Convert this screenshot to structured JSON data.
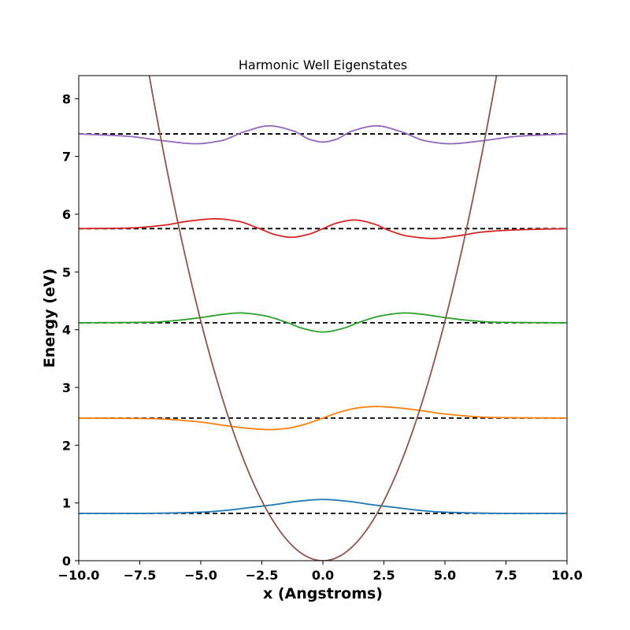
{
  "chart_data": {
    "type": "line",
    "title": "Harmonic Well Eigenstates",
    "xlabel": "x (Angstroms)",
    "ylabel": "Energy (eV)",
    "xlim": [
      -10,
      10
    ],
    "ylim": [
      0,
      8.4
    ],
    "xticks": [
      -10,
      -7.5,
      -5,
      -2.5,
      0,
      2.5,
      5,
      7.5,
      10
    ],
    "xtick_labels": [
      "−10.0",
      "−7.5",
      "−5.0",
      "−2.5",
      "0.0",
      "2.5",
      "5.0",
      "7.5",
      "10.0"
    ],
    "yticks": [
      0,
      1,
      2,
      3,
      4,
      5,
      6,
      7,
      8
    ],
    "ytick_labels": [
      "0",
      "1",
      "2",
      "3",
      "4",
      "5",
      "6",
      "7",
      "8"
    ],
    "grid": false,
    "legend": "none",
    "potential": {
      "type": "parabola",
      "y_at_x_-5": 4.15,
      "color": "#8c564b"
    },
    "energy_levels": [
      0.82,
      2.47,
      4.12,
      5.75,
      7.39
    ],
    "energy_line_style": "dashed",
    "energy_line_color": "#000000",
    "series": [
      {
        "color": "#1f77b4",
        "x": [
          -10,
          -7.5,
          -5,
          -4,
          -3,
          -2,
          -1,
          0,
          1,
          2,
          3,
          4,
          5,
          7.5,
          10
        ],
        "y": [
          0.82,
          0.82,
          0.84,
          0.87,
          0.92,
          0.97,
          1.03,
          1.06,
          1.03,
          0.97,
          0.92,
          0.87,
          0.84,
          0.82,
          0.82
        ]
      },
      {
        "color": "#ff7f0e",
        "x": [
          -10,
          -7,
          -5,
          -4,
          -3,
          -2.2,
          -1.5,
          -0.75,
          0,
          0.75,
          1.5,
          2.2,
          3,
          4,
          5,
          7,
          10
        ],
        "y": [
          2.47,
          2.46,
          2.4,
          2.34,
          2.29,
          2.27,
          2.29,
          2.36,
          2.47,
          2.58,
          2.65,
          2.67,
          2.65,
          2.6,
          2.54,
          2.48,
          2.47
        ]
      },
      {
        "color": "#2ca02c",
        "x": [
          -10,
          -7,
          -6,
          -5,
          -4,
          -3.4,
          -2.5,
          -1.5,
          -0.8,
          0,
          0.8,
          1.5,
          2.5,
          3.4,
          4,
          5,
          6,
          7,
          10
        ],
        "y": [
          4.12,
          4.13,
          4.16,
          4.21,
          4.27,
          4.29,
          4.25,
          4.13,
          4.02,
          3.96,
          4.02,
          4.13,
          4.25,
          4.29,
          4.27,
          4.21,
          4.16,
          4.13,
          4.12
        ]
      },
      {
        "color": "#d62728",
        "x": [
          -10,
          -8,
          -6.5,
          -5.5,
          -4.4,
          -3.5,
          -2.6,
          -1.9,
          -1.3,
          -0.6,
          0,
          0.6,
          1.3,
          2.1,
          2.7,
          3.5,
          4.5,
          5.6,
          6.5,
          8,
          10
        ],
        "y": [
          5.75,
          5.76,
          5.81,
          5.88,
          5.92,
          5.88,
          5.75,
          5.64,
          5.6,
          5.65,
          5.75,
          5.85,
          5.9,
          5.83,
          5.72,
          5.62,
          5.58,
          5.63,
          5.69,
          5.73,
          5.75
        ]
      },
      {
        "color": "#9467bd",
        "x": [
          -10,
          -8,
          -6.5,
          -5.2,
          -4.2,
          -3.2,
          -2.2,
          -1.2,
          -0.5,
          0,
          0.5,
          1.2,
          2.2,
          3.2,
          4.2,
          5.2,
          6.5,
          8,
          10
        ],
        "y": [
          7.39,
          7.35,
          7.27,
          7.22,
          7.27,
          7.43,
          7.53,
          7.44,
          7.29,
          7.25,
          7.29,
          7.44,
          7.53,
          7.43,
          7.27,
          7.22,
          7.27,
          7.35,
          7.39
        ]
      }
    ]
  }
}
